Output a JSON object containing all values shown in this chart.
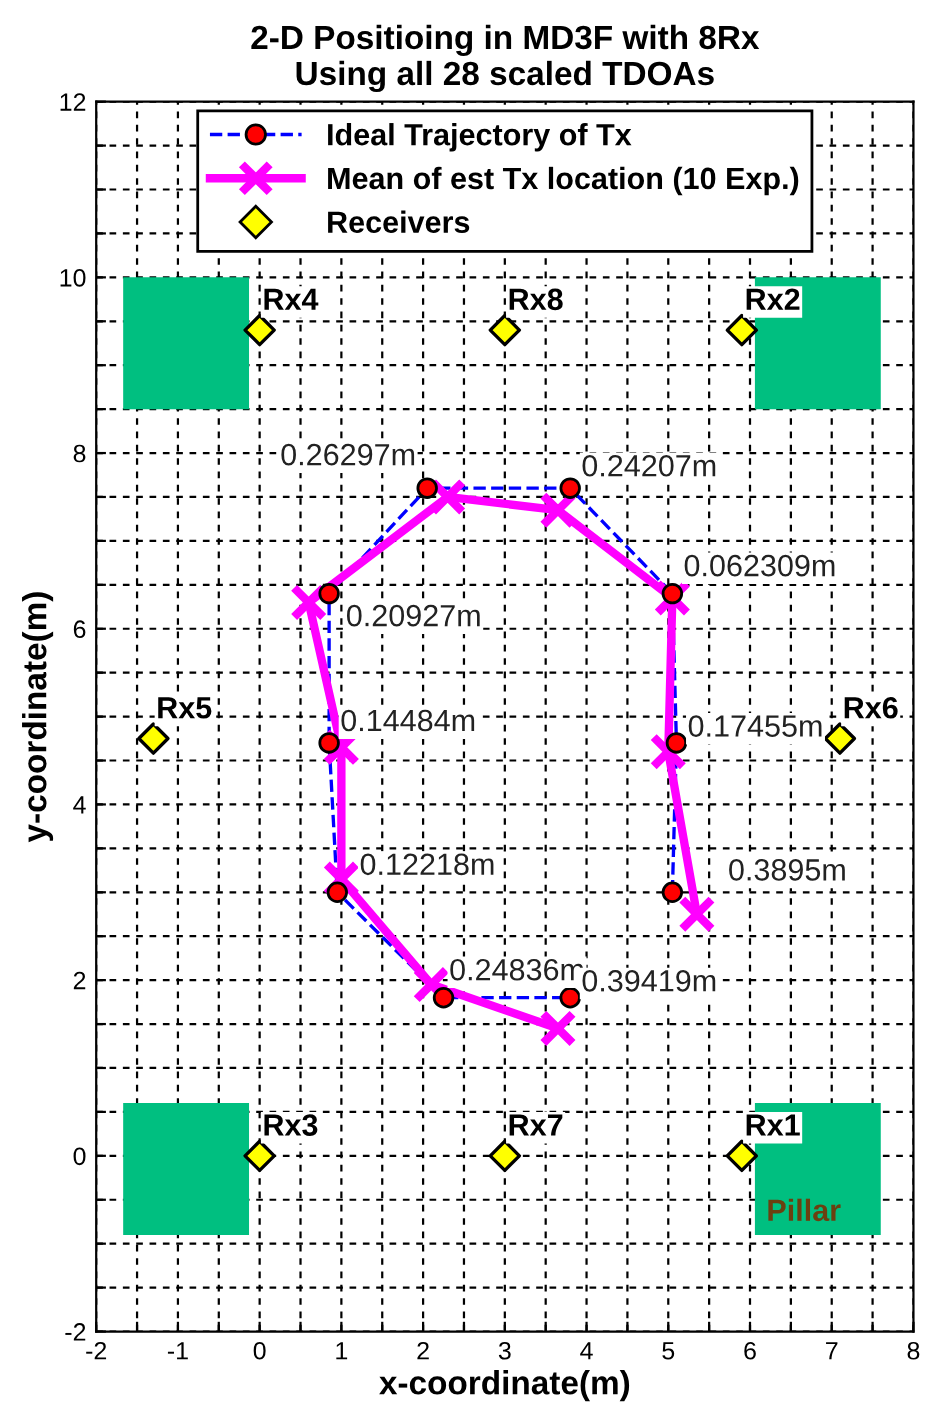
{
  "chart_data": {
    "type": "line",
    "title": "2-D Positioing in MD3F with 8Rx\nUsing all 28 scaled TDOAs",
    "xlabel": "x-coordinate(m)",
    "ylabel": "y-coordinate(m)",
    "series": [
      {
        "name": "Ideal Trajectory of Tx",
        "color": "#0000ff",
        "colors": [
          "#ff0000",
          "#ff0000",
          "#ff0000",
          "#ff0000",
          "#ff0000",
          "#ff0000",
          "#ff0000",
          "#ff0000",
          "#ff0000",
          "#ff0000"
        ],
        "marker": "circle",
        "line_style": "dashed",
        "x": [
          5.05,
          5.1,
          5.05,
          3.8,
          2.05,
          0.85,
          0.85,
          0.95,
          2.25,
          3.8
        ],
        "values": [
          3.0,
          4.7,
          6.4,
          7.6,
          7.6,
          6.4,
          4.7,
          3.0,
          1.8,
          1.8
        ]
      },
      {
        "name": "Mean of est Tx location (10 Exp.)",
        "color": "#ff00ff",
        "marker": "cross",
        "line_style": "solid",
        "x": [
          5.35,
          5.0,
          5.05,
          3.65,
          2.3,
          0.6,
          1.0,
          1.0,
          2.1,
          3.65
        ],
        "values": [
          2.75,
          4.6,
          6.35,
          7.35,
          7.5,
          6.3,
          4.65,
          3.15,
          1.95,
          1.45
        ]
      },
      {
        "name": "Receivers",
        "type": "scatter",
        "color": "#ffff00",
        "marker": "diamond",
        "x": [
          5.9,
          5.9,
          0,
          0,
          -1.3,
          7.1,
          3,
          3
        ],
        "values": [
          0,
          9.4,
          0,
          9.4,
          4.75,
          4.75,
          0,
          9.4
        ]
      }
    ],
    "annotations": [
      {
        "text": "0.3895m",
        "x": 5.05,
        "y": 3.0
      },
      {
        "text": "0.17455m",
        "x": 5.1,
        "y": 4.7
      },
      {
        "text": "0.062309m",
        "x": 5.05,
        "y": 6.4
      },
      {
        "text": "0.24207m",
        "x": 3.8,
        "y": 7.6
      },
      {
        "text": "0.26297m",
        "x": 2.05,
        "y": 7.6
      },
      {
        "text": "0.20927m",
        "x": 0.85,
        "y": 6.4
      },
      {
        "text": "0.14484m",
        "x": 0.85,
        "y": 4.7
      },
      {
        "text": "0.12218m",
        "x": 0.95,
        "y": 3.0
      },
      {
        "text": "0.24836m",
        "x": 2.25,
        "y": 1.8
      },
      {
        "text": "0.39419m",
        "x": 3.8,
        "y": 1.8
      },
      {
        "text": "Rx1",
        "x": 5.9,
        "y": 0
      },
      {
        "text": "Rx2",
        "x": 5.9,
        "y": 9.4
      },
      {
        "text": "Rx3",
        "x": 0,
        "y": 0
      },
      {
        "text": "Rx4",
        "x": 0,
        "y": 9.4
      },
      {
        "text": "Rx5",
        "x": -1.3,
        "y": 4.75
      },
      {
        "text": "Rx6",
        "x": 7.1,
        "y": 4.75
      },
      {
        "text": "Rx7",
        "x": 3,
        "y": 0
      },
      {
        "text": "Rx8",
        "x": 3,
        "y": 9.4
      },
      "Pillar"
    ],
    "xlim": [
      -2,
      8
    ],
    "ylim": [
      -2,
      12
    ],
    "xticks": [
      -2,
      {
        "value": -1.5,
        "label": null
      },
      -1,
      {
        "value": -0.5,
        "label": null
      },
      0,
      {
        "value": 0.5,
        "label": null
      },
      1,
      {
        "value": 1.5,
        "label": null
      },
      2,
      {
        "value": 2.5,
        "label": null
      },
      3,
      {
        "value": 3.5,
        "label": null
      },
      4,
      {
        "value": 4.5,
        "label": null
      },
      5,
      {
        "value": 5.5,
        "label": null
      },
      6,
      {
        "value": 6.5,
        "label": null
      },
      7,
      {
        "value": 7.5,
        "label": null
      },
      8
    ],
    "yticks": [
      -2,
      {
        "value": -1.5,
        "label": null
      },
      {
        "value": -1,
        "label": null
      },
      {
        "value": -0.5,
        "label": null
      },
      0,
      {
        "value": 0.5,
        "label": null
      },
      {
        "value": 1,
        "label": null
      },
      {
        "value": 1.5,
        "label": null
      },
      2,
      {
        "value": 2.5,
        "label": null
      },
      {
        "value": 3,
        "label": null
      },
      {
        "value": 3.5,
        "label": null
      },
      4,
      {
        "value": 4.5,
        "label": null
      },
      {
        "value": 5,
        "label": null
      },
      {
        "value": 5.5,
        "label": null
      },
      6,
      {
        "value": 6.5,
        "label": null
      },
      {
        "value": 7,
        "label": null
      },
      {
        "value": 7.5,
        "label": null
      },
      8,
      {
        "value": 8.5,
        "label": null
      },
      {
        "value": 9,
        "label": null
      },
      {
        "value": 9.5,
        "label": null
      },
      10,
      {
        "value": 10.5,
        "label": null
      },
      {
        "value": 11,
        "label": null
      },
      {
        "value": 11.5,
        "label": null
      },
      12
    ],
    "grid": true,
    "legend": "top"
  }
}
